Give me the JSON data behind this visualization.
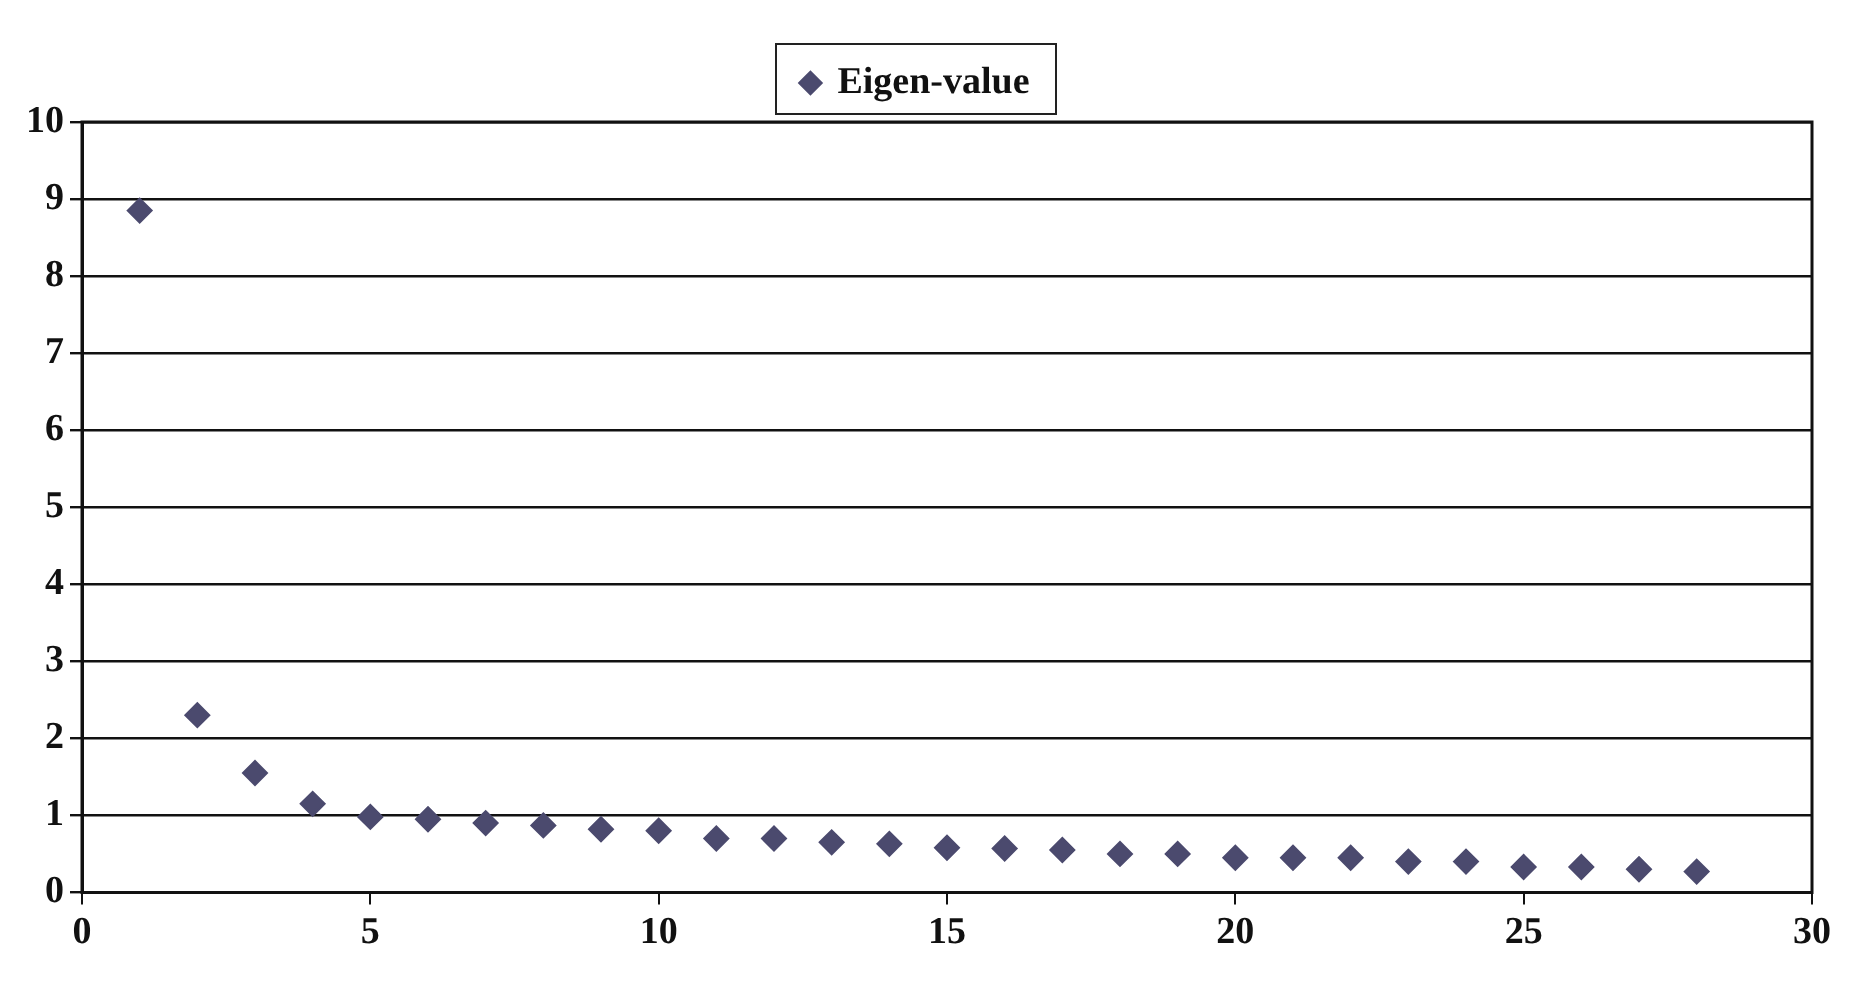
{
  "chart_data": {
    "type": "scatter",
    "x": [
      1,
      2,
      3,
      4,
      5,
      6,
      7,
      8,
      9,
      10,
      11,
      12,
      13,
      14,
      15,
      16,
      17,
      18,
      19,
      20,
      21,
      22,
      23,
      24,
      25,
      26,
      27,
      28
    ],
    "series": [
      {
        "name": "Eigen-value",
        "color": "#4b4a6e",
        "values": [
          8.85,
          2.3,
          1.55,
          1.15,
          0.98,
          0.95,
          0.9,
          0.87,
          0.82,
          0.8,
          0.7,
          0.7,
          0.65,
          0.63,
          0.58,
          0.57,
          0.55,
          0.5,
          0.5,
          0.45,
          0.45,
          0.45,
          0.4,
          0.4,
          0.33,
          0.33,
          0.3,
          0.27
        ]
      }
    ],
    "xlim": [
      0,
      30
    ],
    "xticks": [
      0,
      5,
      10,
      15,
      20,
      25,
      30
    ],
    "ylim": [
      0,
      10
    ],
    "yticks": [
      0,
      1,
      2,
      3,
      4,
      5,
      6,
      7,
      8,
      9,
      10
    ],
    "grid": "y",
    "legend": "top",
    "marker": "diamond"
  }
}
